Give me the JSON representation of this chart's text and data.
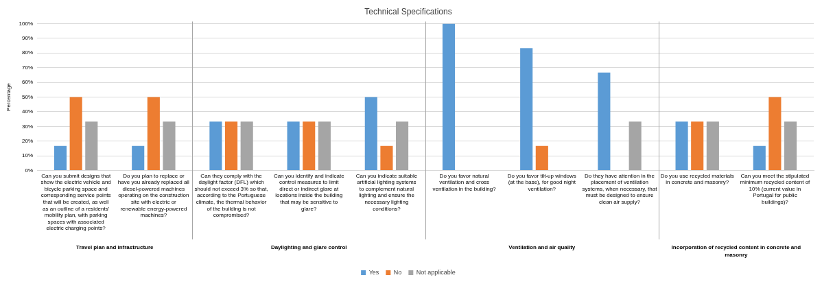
{
  "chart_data": {
    "type": "bar",
    "title": "Technical Specifications",
    "ylabel": "Percentage",
    "categories": [
      "Can you submit designs that show the electric vehicle and bicycle parking space and corresponding service points that will be created, as well as an outline of a residents' mobility plan, with parking spaces with associated electric charging points?",
      "Do you plan to replace or have you already replaced all diesel-powered machines operating on the construction site with electric or renewable energy-powered machines?",
      "Can they comply with the daylight factor (DFL) which should not exceed 3% so that, according to the Portuguese climate, the thermal behavior of the building is not compromised?",
      "Can you identify and indicate control measures to limit direct or indirect glare at locations inside the building that may be sensitive to glare?",
      "Can you indicate suitable artificial lighting systems to complement natural lighting and ensure the necessary lighting conditions?",
      "Do you favor natural ventilation and cross ventilation in the building?",
      "Do you favor tilt-up windows (at the base), for good night ventilation?",
      "Do they have attention in the placement of ventilation systems, when necessary, that must be designed to ensure clean air supply?",
      "Do you use recycled materials in concrete and masonry?",
      "Can you meet the stipulated minimum recycled content of 10% (current value in Portugal for public buildings)?"
    ],
    "series": [
      {
        "name": "Yes",
        "color": "#5b9bd5",
        "values": [
          16.7,
          16.7,
          33.3,
          33.3,
          50,
          100,
          83.3,
          66.7,
          33.3,
          16.7
        ]
      },
      {
        "name": "No",
        "color": "#ed7d31",
        "values": [
          50,
          50,
          33.3,
          33.3,
          16.7,
          0,
          16.7,
          0,
          33.3,
          50
        ]
      },
      {
        "name": "Not applicable",
        "color": "#a5a5a5",
        "values": [
          33.3,
          33.3,
          33.3,
          33.3,
          33.3,
          0,
          0,
          33.3,
          33.3,
          33.3
        ]
      }
    ],
    "ylim": [
      0,
      100
    ],
    "yticks": [
      {
        "value": 0,
        "label": "0%"
      },
      {
        "value": 10,
        "label": "10%"
      },
      {
        "value": 20,
        "label": "20%"
      },
      {
        "value": 30,
        "label": "30%"
      },
      {
        "value": 40,
        "label": "40%"
      },
      {
        "value": 50,
        "label": "50%"
      },
      {
        "value": 60,
        "label": "60%"
      },
      {
        "value": 70,
        "label": "70%"
      },
      {
        "value": 80,
        "label": "80%"
      },
      {
        "value": 90,
        "label": "90%"
      },
      {
        "value": 100,
        "label": "100%"
      }
    ],
    "grid": "y",
    "legend": "bottom",
    "annotations": [
      "Travel plan and infrastructure",
      "Daylighting and glare control",
      "Ventilation and air quality",
      "Incorporation of recycled content in concrete and masonry"
    ]
  }
}
